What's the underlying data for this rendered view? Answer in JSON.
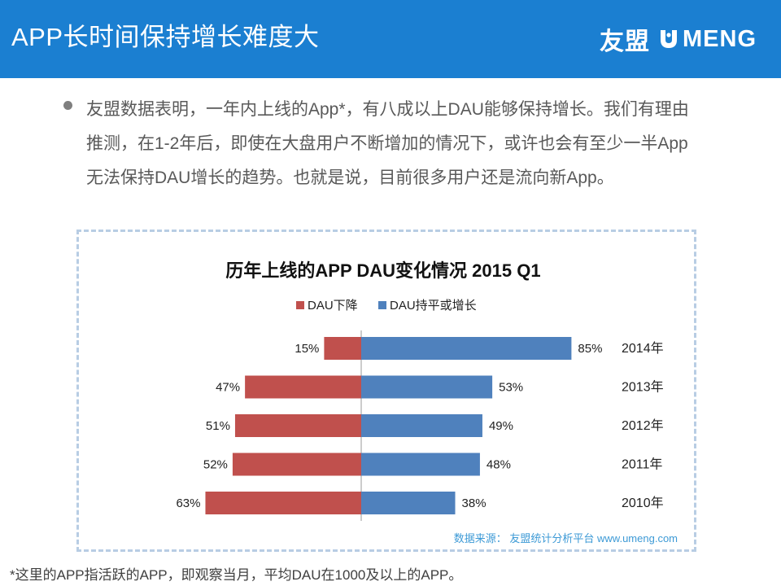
{
  "header": {
    "title": "APP长时间保持增长难度大",
    "brand_cn": "友盟",
    "brand_en": "MENG",
    "brand_color": "#1b7fd1"
  },
  "body": {
    "paragraph": "友盟数据表明，一年内上线的App*，有八成以上DAU能够保持增长。我们有理由推测，在1-2年后，即使在大盘用户不断增加的情况下，或许也会有至少一半App无法保持DAU增长的趋势。也就是说，目前很多用户还是流向新App。"
  },
  "chart_data": {
    "type": "bar",
    "orientation": "horizontal-diverging",
    "title": "历年上线的APP DAU变化情况 2015 Q1",
    "categories": [
      "2014年",
      "2013年",
      "2012年",
      "2011年",
      "2010年"
    ],
    "series": [
      {
        "name": "DAU下降",
        "values": [
          15,
          47,
          51,
          52,
          63
        ],
        "color": "#c0504d",
        "direction": "left"
      },
      {
        "name": "DAU持平或增长",
        "values": [
          85,
          53,
          49,
          48,
          38
        ],
        "color": "#4f81bd",
        "direction": "right"
      }
    ],
    "value_suffix": "%",
    "legend_position": "top-center",
    "source": "数据来源： 友盟统计分析平台 www.umeng.com"
  },
  "footnote": "*这里的APP指活跃的APP，即观察当月，平均DAU在1000及以上的APP。"
}
